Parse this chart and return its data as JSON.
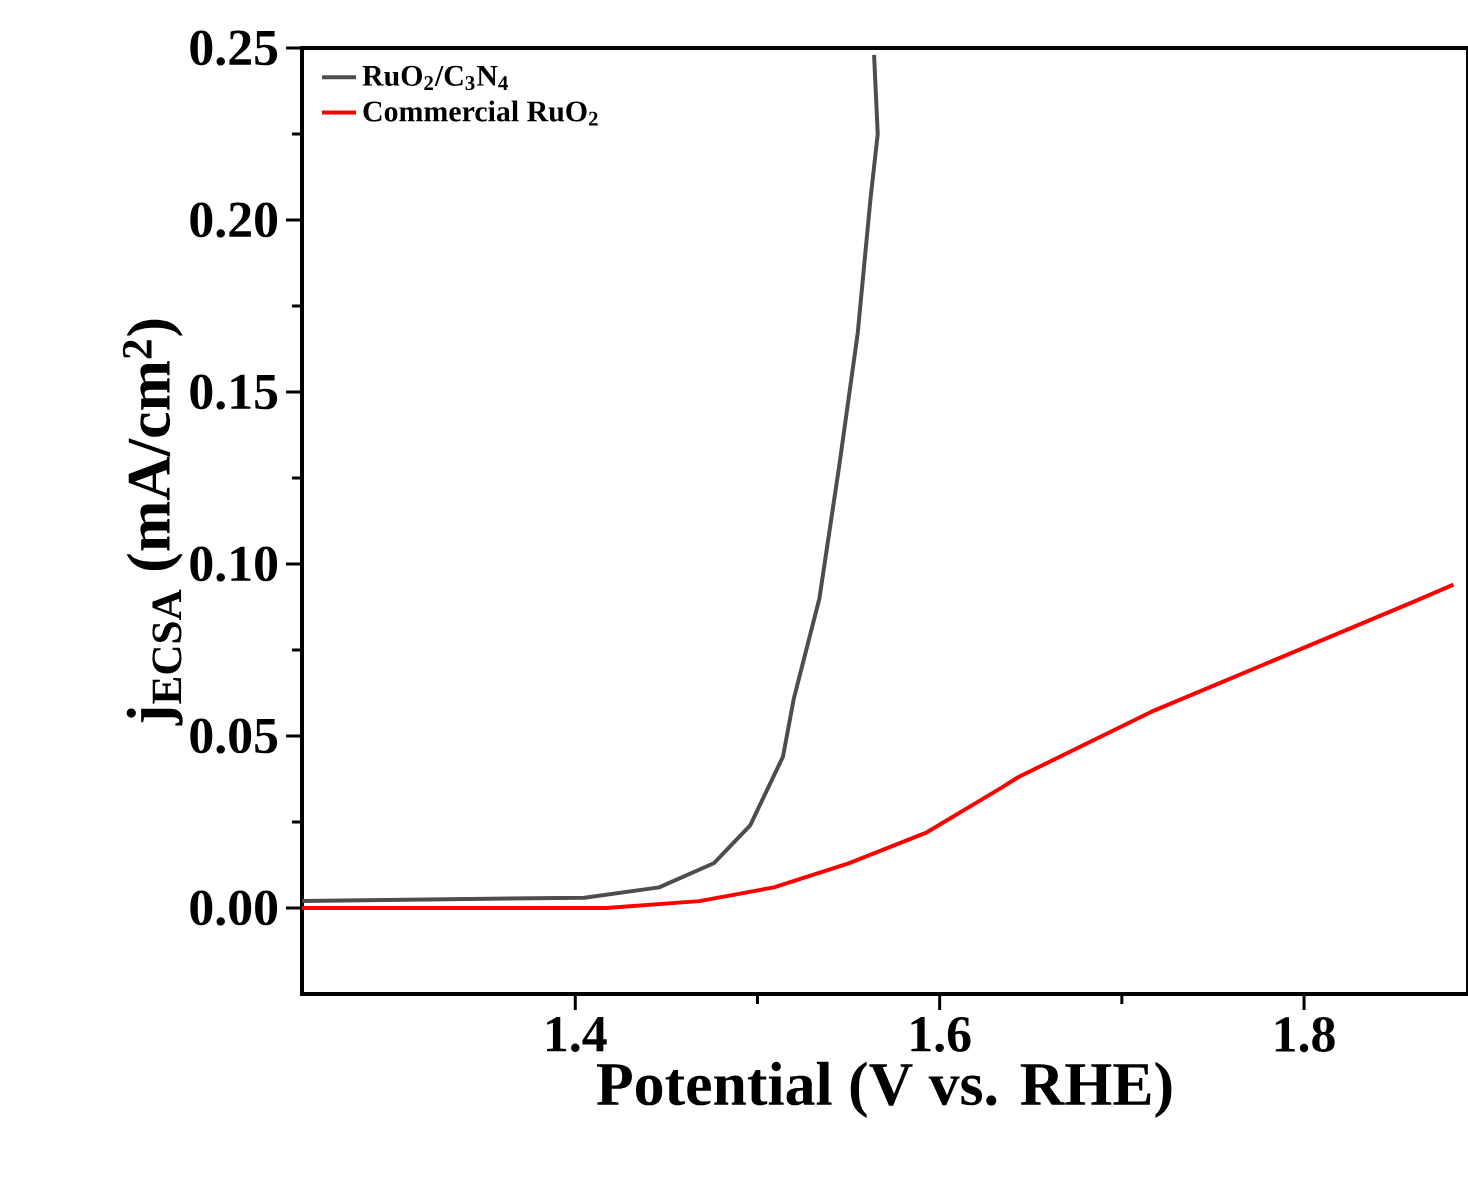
{
  "chart_data": {
    "type": "line",
    "xlabel": "Potential (V vs. RHE)",
    "ylabel": "j$_{ECSA}$ (mA/cm$^{2}$)",
    "xlim": [
      1.25,
      1.89
    ],
    "ylim": [
      -0.025,
      0.25
    ],
    "xticks": [
      1.4,
      1.6,
      1.8
    ],
    "yticks": [
      {
        "value": 0,
        "label": "0.00"
      },
      {
        "value": 0.05,
        "label": "0.05"
      },
      {
        "value": 0.1,
        "label": "0.10"
      },
      {
        "value": 0.15,
        "label": "0.15"
      },
      {
        "value": 0.2,
        "label": "0.20"
      },
      {
        "value": 0.25,
        "label": "0.25"
      }
    ],
    "legend": "top left",
    "grid": false,
    "marker": "none",
    "line_style": "solid",
    "series": [
      {
        "name": "RuO$_{2}$/C$_{3}$N$_{4}$",
        "color": "#4d4d4d",
        "x": [
          1.25,
          1.405,
          1.446,
          1.476,
          1.496,
          1.514,
          1.52,
          1.534,
          1.545,
          1.555,
          1.562,
          1.566,
          1.564
        ],
        "values": [
          0.002,
          0.003,
          0.006,
          0.013,
          0.024,
          0.044,
          0.061,
          0.09,
          0.129,
          0.167,
          0.206,
          0.225,
          0.248
        ]
      },
      {
        "name": "Commercial RuO$_{2}$",
        "color": "#ff0000",
        "x": [
          1.25,
          1.417,
          1.468,
          1.509,
          1.55,
          1.593,
          1.634,
          1.643,
          1.716,
          1.788,
          1.86,
          1.882
        ],
        "values": [
          0.0,
          0.0,
          0.002,
          0.006,
          0.013,
          0.022,
          0.035,
          0.038,
          0.057,
          0.073,
          0.089,
          0.094
        ]
      }
    ]
  }
}
